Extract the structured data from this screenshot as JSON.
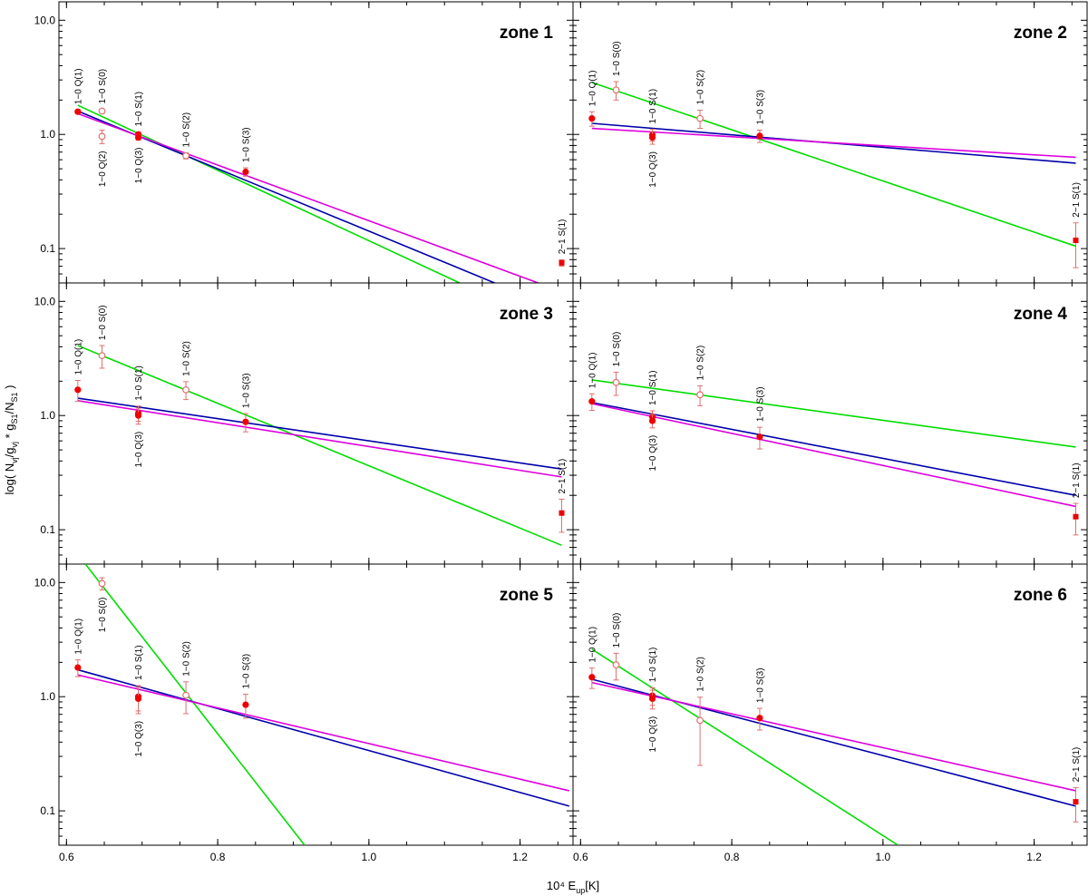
{
  "figure": {
    "xlabel": "10⁴ E",
    "xlabel_sub": "up",
    "xlabel_unit": "[K]",
    "ylabel_parts": [
      "log( N",
      "vj",
      "/g",
      "vj",
      " * g",
      "S1",
      "/N",
      "S1",
      " )"
    ],
    "series_colors": {
      "green": "#00dd00",
      "blue": "#0000aa",
      "magenta": "#dd00dd",
      "points": "#ee0000",
      "errorbars": "#e07070"
    }
  },
  "chart_data": [
    {
      "type": "scatter",
      "title": "zone 1",
      "xlim": [
        0.59,
        1.27
      ],
      "ylim": [
        0.05,
        14.5
      ],
      "yscale": "log",
      "xticks": [
        "0.6",
        "0.8",
        "1.0",
        "1.2"
      ],
      "yticks": [
        "10.0",
        "1.0",
        "0.1"
      ],
      "points": [
        {
          "x": 0.615,
          "y": 1.58,
          "err": 0.06,
          "marker": "filled",
          "label": "1−0 Q(1)",
          "label_pos": "above"
        },
        {
          "x": 0.647,
          "y": 1.6,
          "err": 0.06,
          "marker": "open",
          "label": "1−0 S(0)",
          "label_pos": "above"
        },
        {
          "x": 0.647,
          "y": 0.96,
          "err": 0.13,
          "marker": "open",
          "label": "1−0 Q(2)",
          "label_pos": "below"
        },
        {
          "x": 0.695,
          "y": 1.0,
          "err": 0.05,
          "marker": "filled",
          "label": "1−0 S(1)",
          "label_pos": "above"
        },
        {
          "x": 0.695,
          "y": 0.94,
          "err": 0.05,
          "marker": "filled",
          "label": "1−0 Q(3)",
          "label_pos": "below"
        },
        {
          "x": 0.758,
          "y": 0.65,
          "err": 0.04,
          "marker": "open",
          "label": "1−0 S(2)",
          "label_pos": "above"
        },
        {
          "x": 0.837,
          "y": 0.47,
          "err": 0.04,
          "marker": "filled",
          "label": "1−0 S(3)",
          "label_pos": "above"
        },
        {
          "x": 1.255,
          "y": 0.075,
          "err": 0.005,
          "marker": "square",
          "label": "2−1 S(1)",
          "label_pos": "above"
        }
      ],
      "lines": [
        {
          "color": "green",
          "points": [
            [
              0.615,
              1.8
            ],
            [
              1.12,
              0.05
            ]
          ]
        },
        {
          "color": "blue",
          "points": [
            [
              0.615,
              1.6
            ],
            [
              1.21,
              0.038
            ]
          ]
        },
        {
          "color": "magenta",
          "points": [
            [
              0.615,
              1.52
            ],
            [
              1.255,
              0.042
            ]
          ]
        }
      ]
    },
    {
      "type": "scatter",
      "title": "zone 2",
      "xlim": [
        0.59,
        1.27
      ],
      "ylim": [
        0.05,
        14.5
      ],
      "yscale": "log",
      "xticks": [
        "0.6",
        "0.8",
        "1.0",
        "1.2"
      ],
      "yticks": [
        "10.0",
        "1.0",
        "0.1"
      ],
      "points": [
        {
          "x": 0.615,
          "y": 1.38,
          "err": 0.2,
          "marker": "filled",
          "label": "1−0 Q(1)",
          "label_pos": "above"
        },
        {
          "x": 0.647,
          "y": 2.45,
          "err": 0.45,
          "marker": "open",
          "label": "1−0 S(0)",
          "label_pos": "above"
        },
        {
          "x": 0.695,
          "y": 0.99,
          "err": 0.12,
          "marker": "filled",
          "label": "1−0 S(1)",
          "label_pos": "above"
        },
        {
          "x": 0.695,
          "y": 0.94,
          "err": 0.12,
          "marker": "filled",
          "label": "1−0 Q(3)",
          "label_pos": "below"
        },
        {
          "x": 0.758,
          "y": 1.38,
          "err": 0.25,
          "marker": "open",
          "label": "1−0 S(2)",
          "label_pos": "above"
        },
        {
          "x": 0.837,
          "y": 0.97,
          "err": 0.12,
          "marker": "filled",
          "label": "1−0 S(3)",
          "label_pos": "above"
        },
        {
          "x": 1.255,
          "y": 0.118,
          "err": 0.05,
          "marker": "square",
          "label": "2−1 S(1)",
          "label_pos": "above"
        }
      ],
      "lines": [
        {
          "color": "green",
          "points": [
            [
              0.615,
              2.85
            ],
            [
              1.255,
              0.105
            ]
          ]
        },
        {
          "color": "blue",
          "points": [
            [
              0.615,
              1.25
            ],
            [
              1.255,
              0.56
            ]
          ]
        },
        {
          "color": "magenta",
          "points": [
            [
              0.615,
              1.13
            ],
            [
              1.255,
              0.63
            ]
          ]
        }
      ]
    },
    {
      "type": "scatter",
      "title": "zone 3",
      "xlim": [
        0.59,
        1.27
      ],
      "ylim": [
        0.05,
        14.5
      ],
      "yscale": "log",
      "xticks": [
        "0.6",
        "0.8",
        "1.0",
        "1.2"
      ],
      "yticks": [
        "10.0",
        "1.0",
        "0.1"
      ],
      "points": [
        {
          "x": 0.615,
          "y": 1.68,
          "err": 0.35,
          "marker": "filled",
          "label": "1−0 Q(1)",
          "label_pos": "above"
        },
        {
          "x": 0.647,
          "y": 3.35,
          "err": 0.75,
          "marker": "open",
          "label": "1−0 S(0)",
          "label_pos": "above"
        },
        {
          "x": 0.695,
          "y": 1.05,
          "err": 0.16,
          "marker": "filled",
          "label": "1−0 S(1)",
          "label_pos": "above"
        },
        {
          "x": 0.695,
          "y": 1.0,
          "err": 0.16,
          "marker": "filled",
          "label": "1−0 Q(3)",
          "label_pos": "below"
        },
        {
          "x": 0.758,
          "y": 1.68,
          "err": 0.3,
          "marker": "open",
          "label": "1−0 S(2)",
          "label_pos": "above"
        },
        {
          "x": 0.837,
          "y": 0.88,
          "err": 0.16,
          "marker": "filled",
          "label": "1−0 S(3)",
          "label_pos": "above"
        },
        {
          "x": 1.255,
          "y": 0.14,
          "err": 0.045,
          "marker": "square",
          "label": "2−1 S(1)",
          "label_pos": "above"
        }
      ],
      "lines": [
        {
          "color": "green",
          "points": [
            [
              0.615,
              4.1
            ],
            [
              1.255,
              0.073
            ]
          ]
        },
        {
          "color": "blue",
          "points": [
            [
              0.615,
              1.42
            ],
            [
              1.255,
              0.34
            ]
          ]
        },
        {
          "color": "magenta",
          "points": [
            [
              0.615,
              1.35
            ],
            [
              1.255,
              0.29
            ]
          ]
        }
      ]
    },
    {
      "type": "scatter",
      "title": "zone 4",
      "xlim": [
        0.59,
        1.27
      ],
      "ylim": [
        0.05,
        14.5
      ],
      "yscale": "log",
      "xticks": [
        "0.6",
        "0.8",
        "1.0",
        "1.2"
      ],
      "yticks": [
        "10.0",
        "1.0",
        "0.1"
      ],
      "points": [
        {
          "x": 0.615,
          "y": 1.33,
          "err": 0.22,
          "marker": "filled",
          "label": "1−0 Q(1)",
          "label_pos": "above"
        },
        {
          "x": 0.647,
          "y": 1.95,
          "err": 0.45,
          "marker": "open",
          "label": "1−0 S(0)",
          "label_pos": "above"
        },
        {
          "x": 0.695,
          "y": 0.98,
          "err": 0.12,
          "marker": "filled",
          "label": "1−0 S(1)",
          "label_pos": "above"
        },
        {
          "x": 0.695,
          "y": 0.9,
          "err": 0.12,
          "marker": "filled",
          "label": "1−0 Q(3)",
          "label_pos": "below"
        },
        {
          "x": 0.758,
          "y": 1.52,
          "err": 0.3,
          "marker": "open",
          "label": "1−0 S(2)",
          "label_pos": "above"
        },
        {
          "x": 0.837,
          "y": 0.65,
          "err": 0.14,
          "marker": "filled",
          "label": "1−0 S(3)",
          "label_pos": "above"
        },
        {
          "x": 1.255,
          "y": 0.13,
          "err": 0.04,
          "marker": "square",
          "label": "2−1 S(1)",
          "label_pos": "above"
        }
      ],
      "lines": [
        {
          "color": "green",
          "points": [
            [
              0.615,
              2.05
            ],
            [
              1.255,
              0.53
            ]
          ]
        },
        {
          "color": "blue",
          "points": [
            [
              0.615,
              1.3
            ],
            [
              1.255,
              0.2
            ]
          ]
        },
        {
          "color": "magenta",
          "points": [
            [
              0.615,
              1.27
            ],
            [
              1.255,
              0.16
            ]
          ]
        }
      ]
    },
    {
      "type": "scatter",
      "title": "zone 5",
      "xlim": [
        0.59,
        1.27
      ],
      "ylim": [
        0.05,
        14.5
      ],
      "yscale": "log",
      "xticks": [
        "0.6",
        "0.8",
        "1.0",
        "1.2"
      ],
      "yticks": [
        "10.0",
        "1.0",
        "0.1"
      ],
      "points": [
        {
          "x": 0.615,
          "y": 1.8,
          "err": 0.3,
          "marker": "filled",
          "label": "1−0 Q(1)",
          "label_pos": "above"
        },
        {
          "x": 0.647,
          "y": 9.8,
          "err": 1.2,
          "marker": "open",
          "label": "1−0 S(0)",
          "label_pos": "below"
        },
        {
          "x": 0.695,
          "y": 1.0,
          "err": 0.25,
          "marker": "filled",
          "label": "1−0 S(1)",
          "label_pos": "above"
        },
        {
          "x": 0.695,
          "y": 0.96,
          "err": 0.25,
          "marker": "filled",
          "label": "1−0 Q(3)",
          "label_pos": "below"
        },
        {
          "x": 0.758,
          "y": 1.03,
          "err": 0.32,
          "marker": "open",
          "label": "1−0 S(2)",
          "label_pos": "above"
        },
        {
          "x": 0.837,
          "y": 0.85,
          "err": 0.2,
          "marker": "filled",
          "label": "1−0 S(3)",
          "label_pos": "above"
        }
      ],
      "lines": [
        {
          "color": "green",
          "points": [
            [
              0.625,
              14.5
            ],
            [
              0.915,
              0.05
            ]
          ]
        },
        {
          "color": "blue",
          "points": [
            [
              0.615,
              1.72
            ],
            [
              1.265,
              0.11
            ]
          ]
        },
        {
          "color": "magenta",
          "points": [
            [
              0.615,
              1.55
            ],
            [
              1.265,
              0.15
            ]
          ]
        }
      ]
    },
    {
      "type": "scatter",
      "title": "zone 6",
      "xlim": [
        0.59,
        1.27
      ],
      "ylim": [
        0.05,
        14.5
      ],
      "yscale": "log",
      "xticks": [
        "0.6",
        "0.8",
        "1.0",
        "1.2"
      ],
      "yticks": [
        "10.0",
        "1.0",
        "0.1"
      ],
      "points": [
        {
          "x": 0.615,
          "y": 1.48,
          "err": 0.3,
          "marker": "filled",
          "label": "1−0 Q(1)",
          "label_pos": "above"
        },
        {
          "x": 0.647,
          "y": 1.9,
          "err": 0.5,
          "marker": "open",
          "label": "1−0 S(0)",
          "label_pos": "above"
        },
        {
          "x": 0.695,
          "y": 1.02,
          "err": 0.18,
          "marker": "filled",
          "label": "1−0 S(1)",
          "label_pos": "above"
        },
        {
          "x": 0.695,
          "y": 0.96,
          "err": 0.18,
          "marker": "filled",
          "label": "1−0 Q(3)",
          "label_pos": "below"
        },
        {
          "x": 0.758,
          "y": 0.62,
          "err": 0.37,
          "marker": "open",
          "label": "1−0 S(2)",
          "label_pos": "above"
        },
        {
          "x": 0.837,
          "y": 0.65,
          "err": 0.14,
          "marker": "filled",
          "label": "1−0 S(3)",
          "label_pos": "above"
        },
        {
          "x": 1.255,
          "y": 0.12,
          "err": 0.04,
          "marker": "square",
          "label": "2−1 S(1)",
          "label_pos": "above"
        }
      ],
      "lines": [
        {
          "color": "green",
          "points": [
            [
              0.615,
              2.6
            ],
            [
              1.02,
              0.05
            ]
          ]
        },
        {
          "color": "blue",
          "points": [
            [
              0.615,
              1.42
            ],
            [
              1.255,
              0.11
            ]
          ]
        },
        {
          "color": "magenta",
          "points": [
            [
              0.615,
              1.33
            ],
            [
              1.255,
              0.15
            ]
          ]
        }
      ]
    }
  ]
}
